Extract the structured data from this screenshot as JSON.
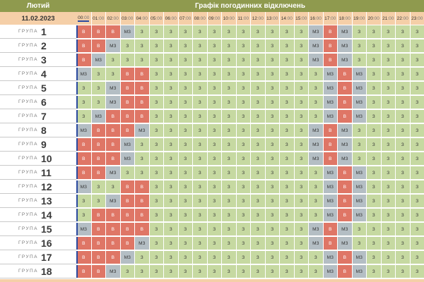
{
  "header": {
    "month": "Лютий",
    "title": "Графік погодинних відключень",
    "date": "11.02.2023"
  },
  "hours": [
    "00",
    "01",
    "02",
    "03",
    "04",
    "05",
    "06",
    "07",
    "08",
    "09",
    "10",
    "11",
    "12",
    "13",
    "14",
    "15",
    "16",
    "17",
    "18",
    "19",
    "20",
    "21",
    "22",
    "23"
  ],
  "minutes_label": "00",
  "group_word": "ГРУПА",
  "legend": {
    "z": "З",
    "mz": "МЗ",
    "v": "В"
  },
  "colors": {
    "z": "#c6d9a1",
    "mz": "#b4bec4",
    "v": "#df7666",
    "header": "#8f9a4e",
    "date": "#f5cfa8"
  },
  "groups": [
    {
      "num": "1",
      "row": "V V V MZ Z Z Z Z Z Z Z Z Z Z Z Z MZ V MZ Z Z Z Z Z"
    },
    {
      "num": "2",
      "row": "V V MZ Z Z Z Z Z Z Z Z Z Z Z Z Z MZ V MZ Z Z Z Z Z"
    },
    {
      "num": "3",
      "row": "V MZ Z Z Z Z Z Z Z Z Z Z Z Z Z Z MZ V MZ Z Z Z Z Z"
    },
    {
      "num": "4",
      "row": "MZ Z Z V V Z Z Z Z Z Z Z Z Z Z Z Z MZ V MZ Z Z Z Z"
    },
    {
      "num": "5",
      "row": "Z Z MZ V V Z Z Z Z Z Z Z Z Z Z Z Z MZ V MZ Z Z Z Z"
    },
    {
      "num": "6",
      "row": "Z Z MZ V V Z Z Z Z Z Z Z Z Z Z Z Z MZ V MZ Z Z Z Z"
    },
    {
      "num": "7",
      "row": "Z MZ V V V Z Z Z Z Z Z Z Z Z Z Z Z MZ V MZ Z Z Z Z"
    },
    {
      "num": "8",
      "row": "MZ V V V MZ Z Z Z Z Z Z Z Z Z Z Z MZ V MZ Z Z Z Z Z"
    },
    {
      "num": "9",
      "row": "V V V MZ Z Z Z Z Z Z Z Z Z Z Z Z MZ V MZ Z Z Z Z Z"
    },
    {
      "num": "10",
      "row": "V V V MZ Z Z Z Z Z Z Z Z Z Z Z Z MZ V MZ Z Z Z Z Z"
    },
    {
      "num": "11",
      "row": "V V MZ Z Z Z Z Z Z Z Z Z Z Z Z Z Z MZ V MZ Z Z Z Z"
    },
    {
      "num": "12",
      "row": "MZ Z Z V V Z Z Z Z Z Z Z Z Z Z Z Z MZ V MZ Z Z Z Z"
    },
    {
      "num": "13",
      "row": "Z Z MZ V V Z Z Z Z Z Z Z Z Z Z Z Z MZ V MZ Z Z Z Z"
    },
    {
      "num": "14",
      "row": "Z V V V V Z Z Z Z Z Z Z Z Z Z Z Z MZ V MZ Z Z Z Z"
    },
    {
      "num": "15",
      "row": "MZ V V V V Z Z Z Z Z Z Z Z Z Z Z MZ V MZ Z Z Z Z Z"
    },
    {
      "num": "16",
      "row": "V V V V MZ Z Z Z Z Z Z Z Z Z Z Z MZ V MZ Z Z Z Z Z"
    },
    {
      "num": "17",
      "row": "V V V MZ Z Z Z Z Z Z Z Z Z Z Z Z Z MZ V MZ Z Z Z Z"
    },
    {
      "num": "18",
      "row": "V V MZ Z Z Z Z Z Z Z Z Z Z Z Z Z Z MZ V MZ Z Z Z Z"
    }
  ]
}
